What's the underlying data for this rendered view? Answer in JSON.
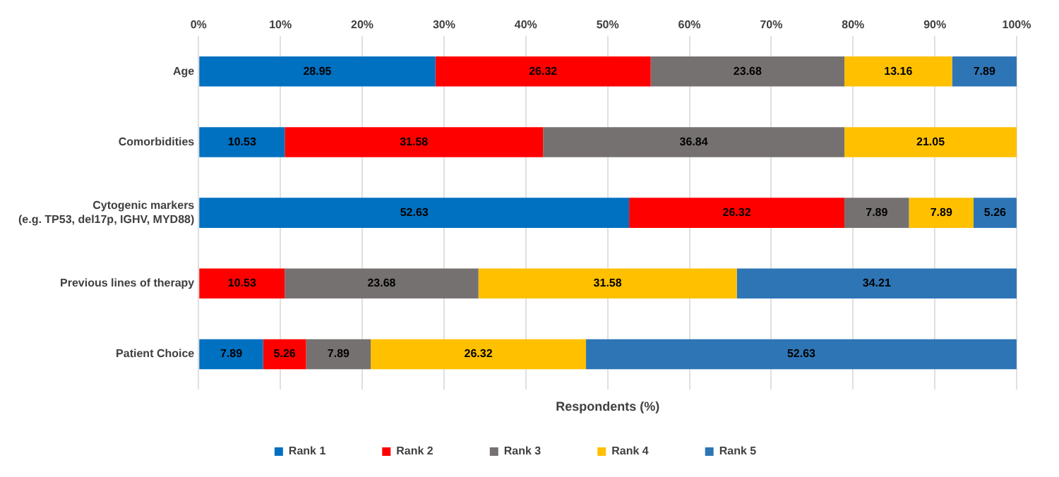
{
  "chart_data": {
    "type": "bar",
    "orientation": "horizontal",
    "stacked": true,
    "xlabel": "Respondents (%)",
    "categories": [
      "Age",
      "Comorbidities",
      "Cytogenic markers\n(e.g. TP53, del17p, IGHV, MYD88)",
      "Previous lines of therapy",
      "Patient Choice"
    ],
    "series": [
      {
        "name": "Rank 1",
        "color": "#0070c0",
        "values": [
          28.95,
          10.53,
          52.63,
          null,
          7.89
        ]
      },
      {
        "name": "Rank 2",
        "color": "#ff0000",
        "values": [
          26.32,
          31.58,
          26.32,
          10.53,
          5.26
        ]
      },
      {
        "name": "Rank 3",
        "color": "#767171",
        "values": [
          23.68,
          36.84,
          7.89,
          23.68,
          7.89
        ]
      },
      {
        "name": "Rank 4",
        "color": "#ffc000",
        "values": [
          13.16,
          21.05,
          7.89,
          31.58,
          26.32
        ]
      },
      {
        "name": "Rank 5",
        "color": "#2e75b6",
        "values": [
          7.89,
          null,
          5.26,
          34.21,
          52.63
        ]
      }
    ],
    "xlim": [
      0,
      100
    ],
    "xticks": [
      {
        "value": 0,
        "label": "0%"
      },
      {
        "value": 10,
        "label": "10%"
      },
      {
        "value": 20,
        "label": "20%"
      },
      {
        "value": 30,
        "label": "30%"
      },
      {
        "value": 40,
        "label": "40%"
      },
      {
        "value": 50,
        "label": "50%"
      },
      {
        "value": 60,
        "label": "60%"
      },
      {
        "value": 70,
        "label": "70%"
      },
      {
        "value": 80,
        "label": "80%"
      },
      {
        "value": 90,
        "label": "90%"
      },
      {
        "value": 100,
        "label": "100%"
      }
    ],
    "grid": "x",
    "legend": "bottom",
    "data_labels": true
  }
}
